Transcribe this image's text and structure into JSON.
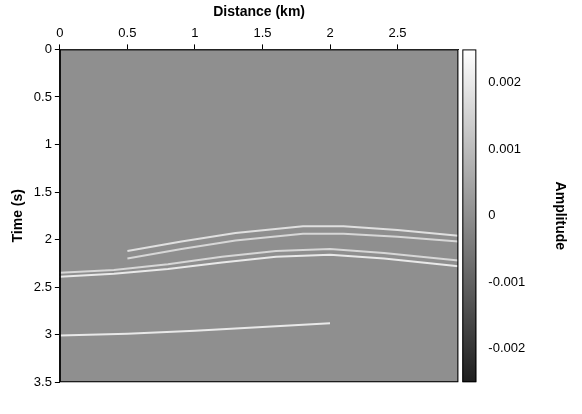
{
  "chart_data": {
    "type": "seismic_section",
    "x_label": "Distance (km)",
    "y_label": "Time (s)",
    "xlim": [
      0,
      2.95
    ],
    "xticks": [
      0,
      0.5,
      1,
      1.5,
      2,
      2.5
    ],
    "ylim": [
      0,
      3.5
    ],
    "yticks": [
      0,
      0.5,
      1,
      1.5,
      2,
      2.5,
      3,
      3.5
    ],
    "grid": false,
    "background_amplitude": 0,
    "colorbar": {
      "label": "Amplitude",
      "range": [
        -0.0025,
        0.0025
      ],
      "ticks": [
        -0.002,
        -0.001,
        0,
        0.001,
        0.002
      ]
    },
    "series": [
      {
        "x": [
          0.5,
          0.9,
          1.3,
          1.8,
          2.1,
          2.5,
          2.95
        ],
        "y": [
          2.12,
          2.02,
          1.93,
          1.86,
          1.86,
          1.9,
          1.96
        ],
        "amplitude": 0.0018
      },
      {
        "x": [
          0.5,
          0.9,
          1.3,
          1.8,
          2.1,
          2.5,
          2.95
        ],
        "y": [
          2.2,
          2.1,
          2.01,
          1.94,
          1.94,
          1.97,
          2.02
        ],
        "amplitude": 0.0016
      },
      {
        "x": [
          0,
          0.4,
          0.8,
          1.2,
          1.6,
          2.0,
          2.4,
          2.95
        ],
        "y": [
          2.35,
          2.32,
          2.26,
          2.18,
          2.12,
          2.1,
          2.14,
          2.22
        ],
        "amplitude": 0.0016
      },
      {
        "x": [
          0,
          0.4,
          0.8,
          1.2,
          1.6,
          2.0,
          2.4,
          2.95
        ],
        "y": [
          2.39,
          2.36,
          2.31,
          2.24,
          2.18,
          2.16,
          2.2,
          2.28
        ],
        "amplitude": 0.002
      },
      {
        "x": [
          0,
          0.5,
          1.0,
          1.5,
          2.0
        ],
        "y": [
          3.01,
          2.99,
          2.96,
          2.92,
          2.88
        ],
        "amplitude": 0.002
      }
    ]
  }
}
